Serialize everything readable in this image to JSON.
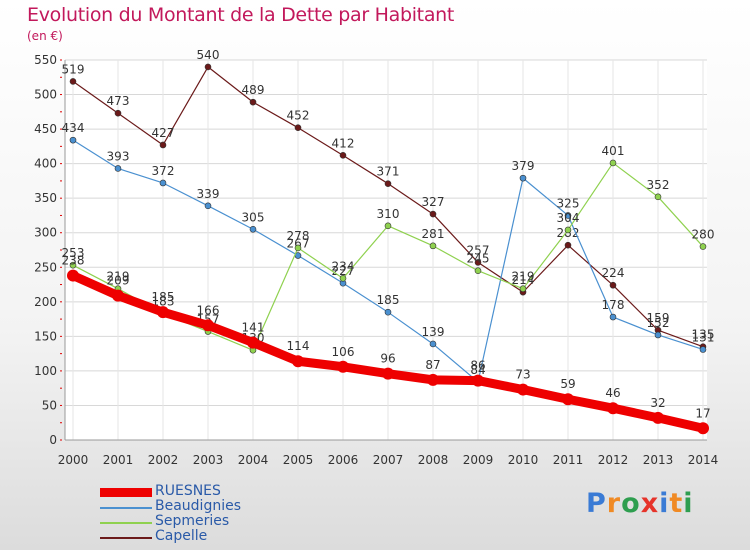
{
  "title": "Evolution du Montant de la Dette par Habitant",
  "subtitle": "(en €)",
  "logo": {
    "text": "Proxiti",
    "colors": [
      "#3a7bd5",
      "#f08a24",
      "#2e9e4f",
      "#e6332a",
      "#3a7bd5",
      "#f08a24",
      "#2e9e4f"
    ]
  },
  "chart_data": {
    "type": "line",
    "x": [
      2000,
      2001,
      2002,
      2003,
      2004,
      2005,
      2006,
      2007,
      2008,
      2009,
      2010,
      2011,
      2012,
      2013,
      2014
    ],
    "ylim": [
      0,
      550
    ],
    "yticks": [
      0,
      50,
      100,
      150,
      200,
      250,
      300,
      350,
      400,
      450,
      500,
      550
    ],
    "grid": true,
    "legend_position": "bottom-left",
    "series": [
      {
        "name": "Capelle",
        "color": "#6b1a1a",
        "width": 1.2,
        "values": [
          519,
          473,
          427,
          540,
          489,
          452,
          412,
          371,
          327,
          257,
          214,
          282,
          224,
          159,
          135
        ]
      },
      {
        "name": "Beaudignies",
        "color": "#4a90d0",
        "width": 1.2,
        "values": [
          434,
          393,
          372,
          339,
          305,
          267,
          227,
          185,
          139,
          84,
          379,
          325,
          178,
          152,
          131
        ]
      },
      {
        "name": "Sepmeries",
        "color": "#8fd14f",
        "width": 1.2,
        "values": [
          253,
          219,
          183,
          157,
          130,
          278,
          234,
          310,
          281,
          245,
          219,
          304,
          401,
          352,
          280
        ]
      },
      {
        "name": "RUESNES",
        "color": "#ee0000",
        "width": 9,
        "values": [
          238,
          209,
          185,
          166,
          141,
          114,
          106,
          96,
          87,
          86,
          73,
          59,
          46,
          32,
          17
        ]
      }
    ]
  }
}
